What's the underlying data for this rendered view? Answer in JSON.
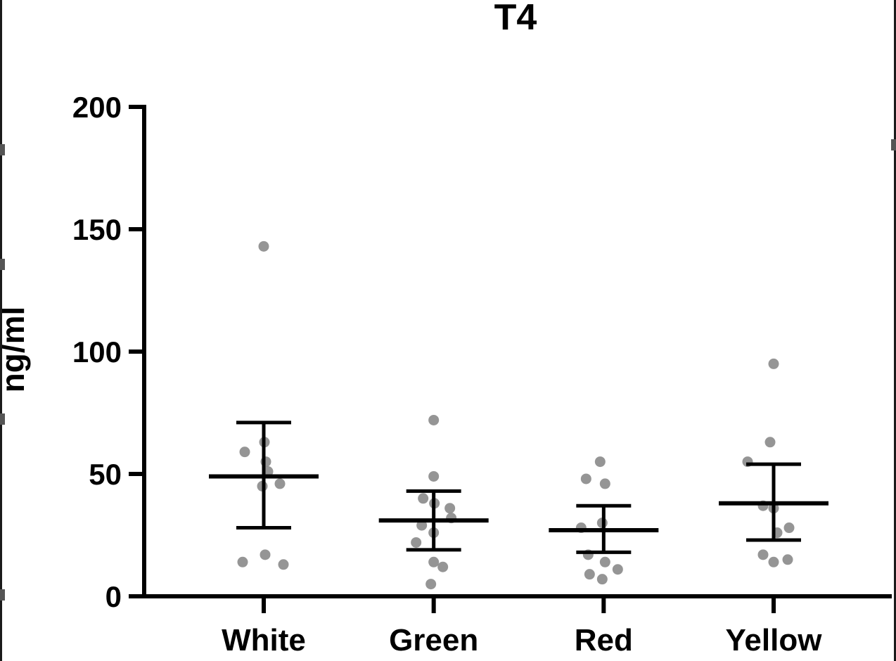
{
  "page": {
    "background": "#ffffff"
  },
  "chart_data": {
    "type": "scatter",
    "title": "T4",
    "ylabel": "ng/ml",
    "xlabel": "",
    "ylim": [
      0,
      200
    ],
    "yticks": [
      0,
      50,
      100,
      150,
      200
    ],
    "categories": [
      "White",
      "Green",
      "Red",
      "Yellow"
    ],
    "legend": "none",
    "grid": "off",
    "error_bar_style": "mean with SD whiskers",
    "axis_color": "#000000",
    "point_color": "#8a8a8a",
    "groups": [
      {
        "label": "White",
        "mean": 49,
        "err_low": 28,
        "err_high": 71,
        "points": [
          {
            "v": 143,
            "dx": 0
          },
          {
            "v": 63,
            "dx": 1
          },
          {
            "v": 59,
            "dx": -27
          },
          {
            "v": 55,
            "dx": 3
          },
          {
            "v": 51,
            "dx": 6
          },
          {
            "v": 46,
            "dx": 23
          },
          {
            "v": 45,
            "dx": -2
          },
          {
            "v": 17,
            "dx": 2
          },
          {
            "v": 14,
            "dx": -30
          },
          {
            "v": 13,
            "dx": 28
          }
        ]
      },
      {
        "label": "Green",
        "mean": 31,
        "err_low": 19,
        "err_high": 43,
        "points": [
          {
            "v": 72,
            "dx": 0
          },
          {
            "v": 49,
            "dx": 0
          },
          {
            "v": 40,
            "dx": -15
          },
          {
            "v": 38,
            "dx": 1
          },
          {
            "v": 36,
            "dx": 23
          },
          {
            "v": 32,
            "dx": 25
          },
          {
            "v": 29,
            "dx": -17
          },
          {
            "v": 26,
            "dx": 0
          },
          {
            "v": 22,
            "dx": -25
          },
          {
            "v": 14,
            "dx": 0
          },
          {
            "v": 12,
            "dx": 13
          },
          {
            "v": 5,
            "dx": -4
          }
        ]
      },
      {
        "label": "Red",
        "mean": 27,
        "err_low": 18,
        "err_high": 37,
        "points": [
          {
            "v": 55,
            "dx": -5
          },
          {
            "v": 48,
            "dx": -25
          },
          {
            "v": 46,
            "dx": 2
          },
          {
            "v": 30,
            "dx": -2
          },
          {
            "v": 28,
            "dx": -32
          },
          {
            "v": 17,
            "dx": -22
          },
          {
            "v": 14,
            "dx": 2
          },
          {
            "v": 11,
            "dx": 20
          },
          {
            "v": 9,
            "dx": -20
          },
          {
            "v": 7,
            "dx": -2
          }
        ]
      },
      {
        "label": "Yellow",
        "mean": 38,
        "err_low": 23,
        "err_high": 54,
        "points": [
          {
            "v": 95,
            "dx": 0
          },
          {
            "v": 63,
            "dx": -5
          },
          {
            "v": 55,
            "dx": -37
          },
          {
            "v": 37,
            "dx": -15
          },
          {
            "v": 36,
            "dx": 0
          },
          {
            "v": 28,
            "dx": 22
          },
          {
            "v": 26,
            "dx": 5
          },
          {
            "v": 17,
            "dx": -15
          },
          {
            "v": 15,
            "dx": 20
          },
          {
            "v": 14,
            "dx": 0
          }
        ]
      }
    ]
  }
}
